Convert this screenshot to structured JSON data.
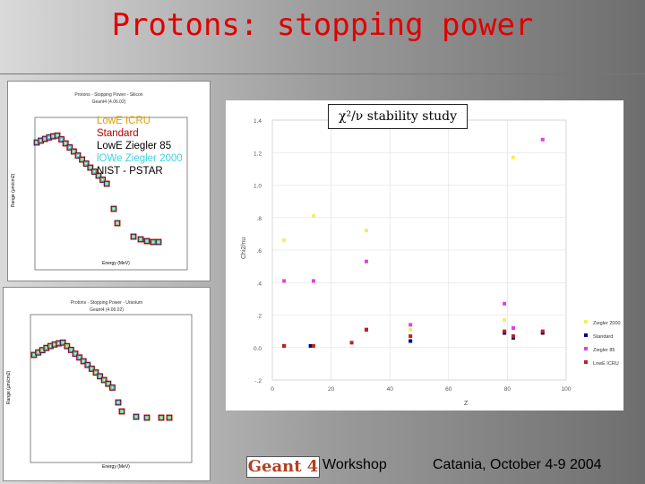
{
  "title": "Protons: stopping power",
  "top_plot": {
    "title": "Protons - Stopping Power - Silicon",
    "subtitle": "Geant4 (4.06.02)",
    "ylabel": "Range (µm/cm2)",
    "xlabel": "Energy (MeV)",
    "legend": [
      {
        "label": "LowE ICRU",
        "color": "#e0a000"
      },
      {
        "label": "Standard",
        "color": "#b00000"
      },
      {
        "label": "LowE Ziegler 85",
        "color": "#000000"
      },
      {
        "label": "lOWe Ziegler 2000",
        "color": "#40d0e0"
      },
      {
        "label": "NIST - PSTAR",
        "color": "#000000"
      }
    ]
  },
  "bottom_plot": {
    "title": "Protons - Stopping Power - Uranium",
    "subtitle": "Geant4 (4.06.02)",
    "ylabel": "Range (µm/cm2)",
    "xlabel": "Energy (MeV)"
  },
  "chi_label": "χ²/ν stability study",
  "chart_data": {
    "type": "scatter",
    "title": "χ²/ν stability study",
    "xlabel": "Z",
    "ylabel": "Chi2/nu",
    "xlim": [
      0,
      100
    ],
    "ylim": [
      -0.2,
      1.4
    ],
    "xticks": [
      0,
      20,
      40,
      60,
      80,
      100
    ],
    "yticks": [
      -0.2,
      0.0,
      0.2,
      0.4,
      0.6,
      0.8,
      1.0,
      1.2,
      1.4
    ],
    "ytick_labels": [
      "-.2",
      "0.0",
      ".2",
      ".4",
      ".6",
      ".8",
      "1.0",
      "1.2",
      "1.4"
    ],
    "series": [
      {
        "name": "Ziegler 2000",
        "color": "#f0f060",
        "points": [
          [
            4,
            0.66
          ],
          [
            14,
            0.81
          ],
          [
            32,
            0.72
          ],
          [
            47,
            0.11
          ],
          [
            79,
            0.17
          ],
          [
            82,
            1.17
          ],
          [
            92,
            0.1
          ]
        ]
      },
      {
        "name": "Standard",
        "color": "#000080",
        "points": [
          [
            4,
            0.01
          ],
          [
            13,
            0.01
          ],
          [
            32,
            0.11
          ],
          [
            47,
            0.04
          ],
          [
            79,
            0.09
          ],
          [
            82,
            0.06
          ],
          [
            92,
            0.09
          ]
        ]
      },
      {
        "name": "Ziegler 85",
        "color": "#e040e0",
        "points": [
          [
            4,
            0.41
          ],
          [
            14,
            0.41
          ],
          [
            32,
            0.53
          ],
          [
            47,
            0.14
          ],
          [
            79,
            0.27
          ],
          [
            82,
            0.12
          ],
          [
            92,
            1.28
          ]
        ]
      },
      {
        "name": "LowE ICRU",
        "color": "#c02020",
        "points": [
          [
            4,
            0.01
          ],
          [
            14,
            0.01
          ],
          [
            27,
            0.03
          ],
          [
            32,
            0.11
          ],
          [
            47,
            0.07
          ],
          [
            79,
            0.1
          ],
          [
            82,
            0.07
          ],
          [
            92,
            0.1
          ]
        ]
      }
    ],
    "legend_labels": [
      "Ziegler 2000",
      "Standard",
      "Ziegler 85",
      "LowE ICRU"
    ]
  },
  "footer": {
    "logo": "Geant 4",
    "workshop": "Workshop",
    "date": "Catania, October 4-9 2004"
  }
}
